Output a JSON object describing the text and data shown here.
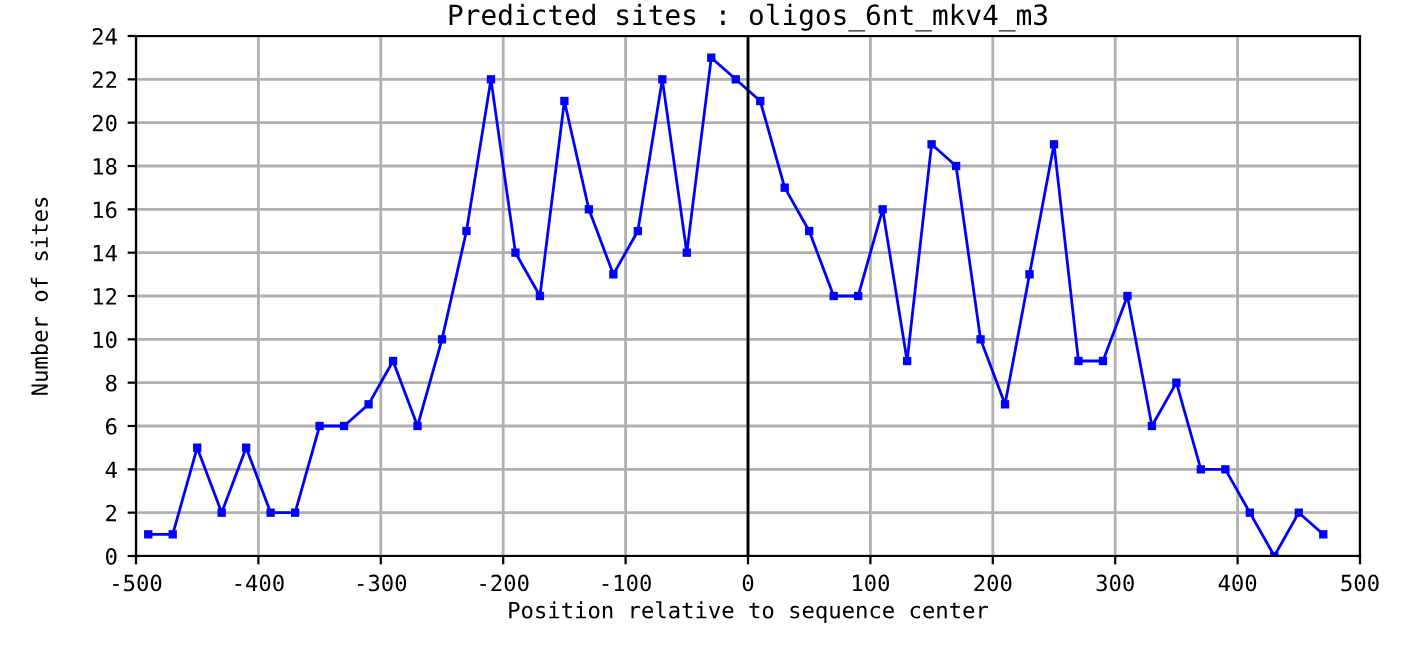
{
  "chart_data": {
    "type": "line",
    "title": "Predicted sites : oligos_6nt_mkv4_m3",
    "xlabel": "Position relative to sequence center",
    "ylabel": "Number of sites",
    "x": [
      -490,
      -470,
      -450,
      -430,
      -410,
      -390,
      -370,
      -350,
      -330,
      -310,
      -290,
      -270,
      -250,
      -230,
      -210,
      -190,
      -170,
      -150,
      -130,
      -110,
      -90,
      -70,
      -50,
      -30,
      -10,
      10,
      30,
      50,
      70,
      90,
      110,
      130,
      150,
      170,
      190,
      210,
      230,
      250,
      270,
      290,
      310,
      330,
      350,
      370,
      390,
      410,
      430,
      450,
      470
    ],
    "series": [
      {
        "color": "#0000ff",
        "values": [
          1,
          1,
          5,
          2,
          5,
          2,
          2,
          6,
          6,
          7,
          9,
          6,
          10,
          15,
          22,
          14,
          12,
          21,
          16,
          13,
          15,
          22,
          14,
          23,
          22,
          21,
          17,
          15,
          12,
          12,
          16,
          9,
          19,
          18,
          10,
          7,
          13,
          19,
          9,
          9,
          12,
          6,
          8,
          4,
          4,
          2,
          0,
          2,
          1
        ]
      }
    ],
    "xlim": [
      -500,
      500
    ],
    "xticks": [
      -500,
      -400,
      -300,
      -200,
      -100,
      0,
      100,
      200,
      300,
      400,
      500
    ],
    "ylim": [
      0,
      24
    ],
    "yticks": [
      0,
      2,
      4,
      6,
      8,
      10,
      12,
      14,
      16,
      18,
      20,
      22,
      24
    ],
    "ref_lines": [
      {
        "axis": "x",
        "value": 0,
        "color": "#000000"
      }
    ],
    "grid": true,
    "marker": "square",
    "line_style": "solid"
  }
}
